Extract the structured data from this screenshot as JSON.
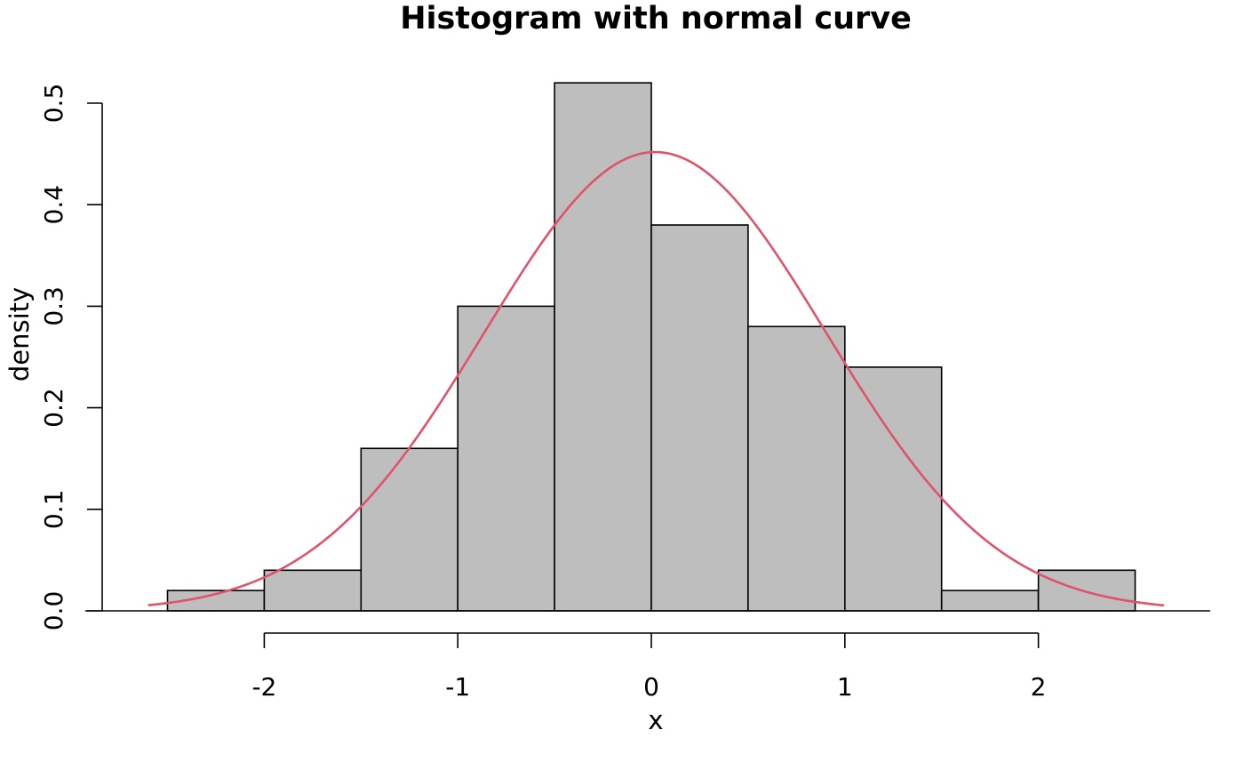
{
  "chart_data": {
    "type": "bar",
    "title": "Histogram with normal curve",
    "xlabel": "x",
    "ylabel": "density",
    "bin_edges": [
      -2.5,
      -2.0,
      -1.5,
      -1.0,
      -0.5,
      0.0,
      0.5,
      1.0,
      1.5,
      2.0,
      2.5
    ],
    "values": [
      0.02,
      0.04,
      0.16,
      0.3,
      0.52,
      0.38,
      0.28,
      0.24,
      0.02,
      0.04
    ],
    "x_ticks": [
      -2,
      -1,
      0,
      1,
      2
    ],
    "x_tick_labels": [
      "-2",
      "-1",
      "0",
      "1",
      "2"
    ],
    "y_ticks": [
      0.0,
      0.1,
      0.2,
      0.3,
      0.4,
      0.5
    ],
    "y_tick_labels": [
      "0.0",
      "0.1",
      "0.2",
      "0.3",
      "0.4",
      "0.5"
    ],
    "xlim": [
      -2.6,
      2.65
    ],
    "ylim": [
      0,
      0.52
    ],
    "normal_curve": {
      "mean": 0.02,
      "sd": 0.883,
      "x_range": [
        -2.6,
        2.65
      ]
    },
    "bar_fill": "#bebebe",
    "curve_color": "#df536b",
    "grid": false,
    "legend": "none"
  }
}
